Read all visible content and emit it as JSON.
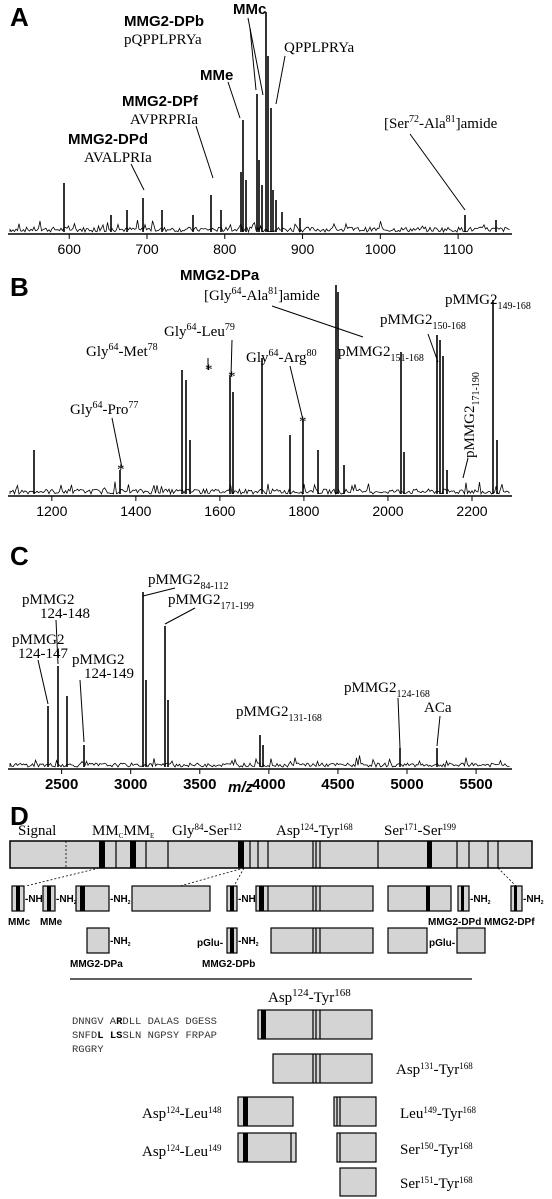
{
  "panels": {
    "A": {
      "label": "A",
      "ticks": [
        "600",
        "700",
        "800",
        "900",
        "1000",
        "1100"
      ],
      "tick_values": [
        600,
        700,
        800,
        900,
        1000,
        1100
      ],
      "x_range": [
        565,
        1150
      ],
      "annotations": {
        "mmg2_dpb": "MMG2-DPb",
        "mmc": "MMc",
        "pqpplprya": "pQPPLPRYa",
        "qpplprya": "QPPLPRYa",
        "mme": "MMe",
        "mmg2_dpf": "MMG2-DPf",
        "avprpria": "AVPRPRIa",
        "mmg2_dpd": "MMG2-DPd",
        "avalpria": "AVALPRIa",
        "ser_a": "[Ser",
        "ser_sup": "72",
        "ala_a": "-Ala",
        "ala_sup": "81",
        "amide": "]amide"
      }
    },
    "B": {
      "label": "B",
      "ticks": [
        "1200",
        "1400",
        "1600",
        "1800",
        "2000",
        "2200"
      ],
      "tick_values": [
        1200,
        1400,
        1600,
        1800,
        2000,
        2200
      ],
      "x_range": [
        1160,
        2250
      ],
      "annotations": {
        "mmg2_dpa": "MMG2-DPa",
        "gly_ala": "[Gly",
        "gly_ala_sup1": "64",
        "gly_ala_mid": "-Ala",
        "gly_ala_sup2": "81",
        "gly_ala_end": "]amide",
        "gly_met": "Gly",
        "gly_met_sup1": "64",
        "gly_met_mid": "-Met",
        "gly_met_sup2": "78",
        "gly_leu": "Gly",
        "gly_leu_sup1": "64",
        "gly_leu_mid": "-Leu",
        "gly_leu_sup2": "79",
        "gly_arg": "Gly",
        "gly_arg_sup1": "64",
        "gly_arg_mid": "-Arg",
        "gly_arg_sup2": "80",
        "gly_pro": "Gly",
        "gly_pro_sup1": "64",
        "gly_pro_mid": "-Pro",
        "gly_pro_sup2": "77",
        "p150": "pMMG2",
        "p150_sub": "150-168",
        "p149": "pMMG2",
        "p149_sub": "149-168",
        "p151": "pMMG2",
        "p151_sub": "151-168",
        "p171": "pMMG2",
        "p171_sub": "171-190",
        "star": "*"
      }
    },
    "C": {
      "label": "C",
      "ticks": [
        "2500",
        "3000",
        "3500",
        "4000",
        "4500",
        "5000",
        "5500"
      ],
      "tick_values": [
        2500,
        3000,
        3500,
        4000,
        4500,
        5000,
        5500
      ],
      "x_range": [
        2300,
        5550
      ],
      "axis_label": "m/z",
      "annotations": {
        "p84": "pMMG2",
        "p84_sub": "84-112",
        "p124_148": "pMMG2",
        "p124_148_sub": "124-148",
        "p171_199": "pMMG2",
        "p171_199_sub": "171-199",
        "p124_147": "pMMG2",
        "p124_147_sub": "124-147",
        "p124_149": "pMMG2",
        "p124_149_sub": "124-149",
        "p131_168": "pMMG2",
        "p131_168_sub": "131-168",
        "p124_168": "pMMG2",
        "p124_168_sub": "124-168",
        "aca": "ACa"
      }
    },
    "D": {
      "label": "D",
      "top_labels": {
        "signal": "Signal",
        "mm": "MM",
        "mm_c": "C",
        "mm_e": "E",
        "gly": "Gly",
        "gly_sup": "84",
        "gly_mid": "-Ser",
        "gly_sup2": "112",
        "asp": "Asp",
        "asp_sup": "124",
        "asp_mid": "-Tyr",
        "asp_sup2": "168",
        "ser": "Ser",
        "ser_sup": "171",
        "ser_mid": "-Ser",
        "ser_sup2": "199"
      },
      "nh2": "-NH",
      "nh2_sub": "2",
      "peptides": {
        "mmc": "MMc",
        "mme": "MMe",
        "mmg2_dpd": "MMG2-DPd",
        "mmg2_dpf": "MMG2-DPf",
        "mmg2_dpa": "MMG2-DPa",
        "mmg2_dpb": "MMG2-DPb",
        "pglu1": "pGlu-",
        "pglu2": "pGlu-"
      },
      "sub_title": {
        "asp": "Asp",
        "sup1": "124",
        "mid": "-Tyr",
        "sup2": "168"
      },
      "sequence": {
        "line1_a": "DNNGV A",
        "line1_b": "R",
        "line1_c": "DLL DALAS DGESS",
        "line2_a": "SNFD",
        "line2_b": "L LS",
        "line2_c": "SLN NGPSY FRPAP",
        "line3": "RGGRY"
      },
      "fragments": [
        {
          "name": "Asp",
          "s1": "131",
          "mid": "-Tyr",
          "s2": "168"
        },
        {
          "name": "Asp",
          "s1": "124",
          "mid": "-Leu",
          "s2": "148"
        },
        {
          "name": "Leu",
          "s1": "149",
          "mid": "-Tyr",
          "s2": "168"
        },
        {
          "name": "Asp",
          "s1": "124",
          "mid": "-Leu",
          "s2": "149"
        },
        {
          "name": "Ser",
          "s1": "150",
          "mid": "-Tyr",
          "s2": "168"
        },
        {
          "name": "Ser",
          "s1": "151",
          "mid": "-Tyr",
          "s2": "168"
        }
      ]
    }
  },
  "colors": {
    "box_fill": "#d4d4d4",
    "line": "#000000"
  }
}
